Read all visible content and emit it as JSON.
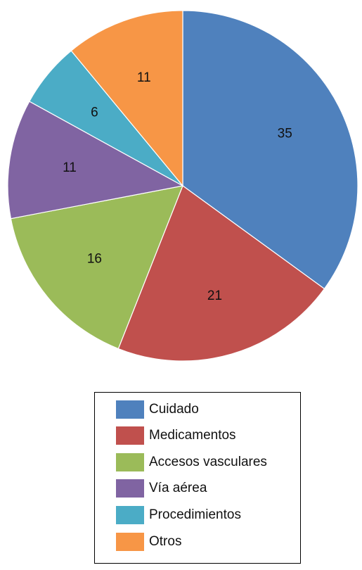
{
  "chart_data": {
    "type": "pie",
    "title": "",
    "slices": [
      {
        "label": "Cuidado",
        "value": 35,
        "display": "35",
        "color": "#4F81BD"
      },
      {
        "label": "Medicamentos",
        "value": 21,
        "display": "21",
        "color": "#C0504D"
      },
      {
        "label": "Accesos vasculares",
        "value": 16,
        "display": "16",
        "color": "#9BBB59"
      },
      {
        "label": "Vía aérea",
        "value": 11,
        "display": "11",
        "color": "#8064A2"
      },
      {
        "label": "Procedimientos",
        "value": 6,
        "display": "6",
        "color": "#4BACC6"
      },
      {
        "label": "Otros",
        "value": 11,
        "display": "11",
        "color": "#F79646"
      }
    ],
    "start_angle": "12 o'clock",
    "direction": "clockwise",
    "legend_position": "bottom-center"
  }
}
